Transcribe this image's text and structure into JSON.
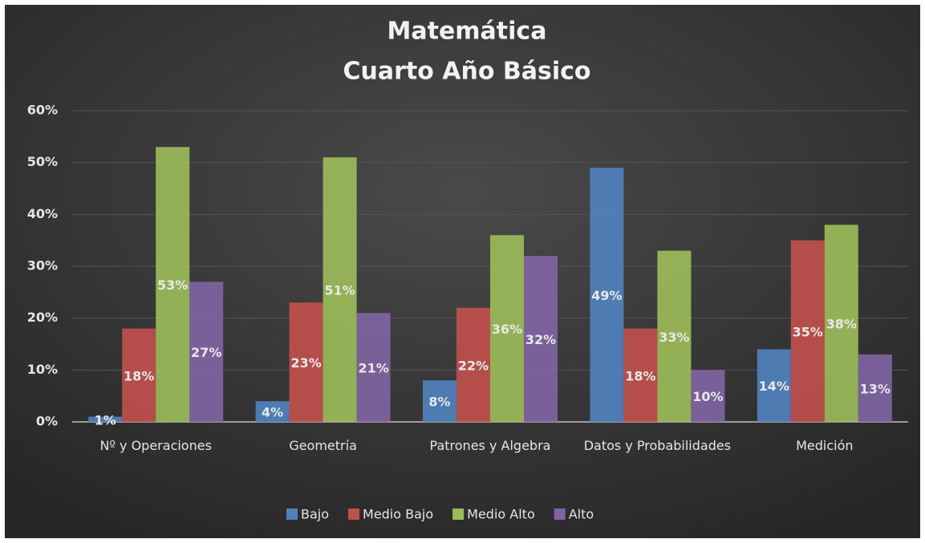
{
  "chart_data": {
    "type": "bar",
    "title": "Matemática",
    "subtitle": "Cuarto Año Básico",
    "categories": [
      "Nº y Operaciones",
      "Geometría",
      "Patrones y Algebra",
      "Datos y Probabilidades",
      "Medición"
    ],
    "series": [
      {
        "name": "Bajo",
        "color": "#4f81bd",
        "values": [
          1,
          4,
          8,
          49,
          14
        ],
        "value_labels": [
          "1%",
          "4%",
          "8%",
          "49%",
          "14%"
        ]
      },
      {
        "name": "Medio Bajo",
        "color": "#c0504d",
        "values": [
          18,
          23,
          22,
          18,
          35
        ],
        "value_labels": [
          "18%",
          "23%",
          "22%",
          "18%",
          "35%"
        ]
      },
      {
        "name": "Medio Alto",
        "color": "#9bbb59",
        "values": [
          53,
          51,
          36,
          33,
          38
        ],
        "value_labels": [
          "53%",
          "51%",
          "36%",
          "33%",
          "38%"
        ]
      },
      {
        "name": "Alto",
        "color": "#8064a2",
        "values": [
          27,
          21,
          32,
          10,
          13
        ],
        "value_labels": [
          "27%",
          "21%",
          "32%",
          "10%",
          "13%"
        ]
      }
    ],
    "ylim": [
      0,
      60
    ],
    "yticks": [
      {
        "value": 0,
        "label": "0%"
      },
      {
        "value": 10,
        "label": "10%"
      },
      {
        "value": 20,
        "label": "20%"
      },
      {
        "value": 30,
        "label": "30%"
      },
      {
        "value": 40,
        "label": "40%"
      },
      {
        "value": 50,
        "label": "50%"
      },
      {
        "value": 60,
        "label": "60%"
      }
    ],
    "grid": true,
    "legend": "bottom"
  }
}
